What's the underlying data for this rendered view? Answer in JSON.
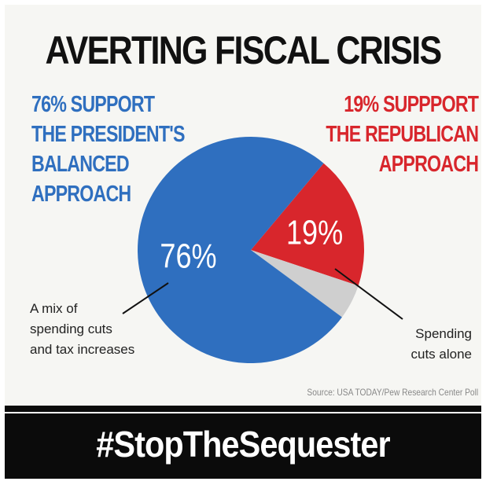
{
  "title": "AVERTING FISCAL CRISIS",
  "left_heading": [
    "76% SUPPORT",
    "THE PRESIDENT'S",
    "BALANCED",
    "APPROACH"
  ],
  "right_heading": [
    "19% SUPPPORT",
    "THE REPUBLICAN",
    "APPROACH"
  ],
  "chart_data": {
    "type": "pie",
    "title": "AVERTING FISCAL CRISIS",
    "slices": [
      {
        "label": "A mix of spending cuts and tax increases",
        "value": 76,
        "display": "76%",
        "color": "#2f6fbf"
      },
      {
        "label": "Spending cuts alone",
        "value": 19,
        "display": "19%",
        "color": "#d8262c"
      },
      {
        "label": "",
        "value": 5,
        "display": "",
        "color": "#cfcfcf"
      }
    ]
  },
  "annotations": {
    "left_note": [
      "A mix of",
      "spending cuts",
      "and tax increases"
    ],
    "right_note": [
      "Spending",
      "cuts alone"
    ]
  },
  "source": "Source: USA TODAY/Pew Research Center Poll",
  "hashtag": "#StopTheSequester",
  "colors": {
    "blue": "#2f6fbf",
    "red": "#d8262c",
    "gray": "#cfcfcf",
    "background": "#f6f6f3",
    "banner": "#0b0b0b"
  }
}
